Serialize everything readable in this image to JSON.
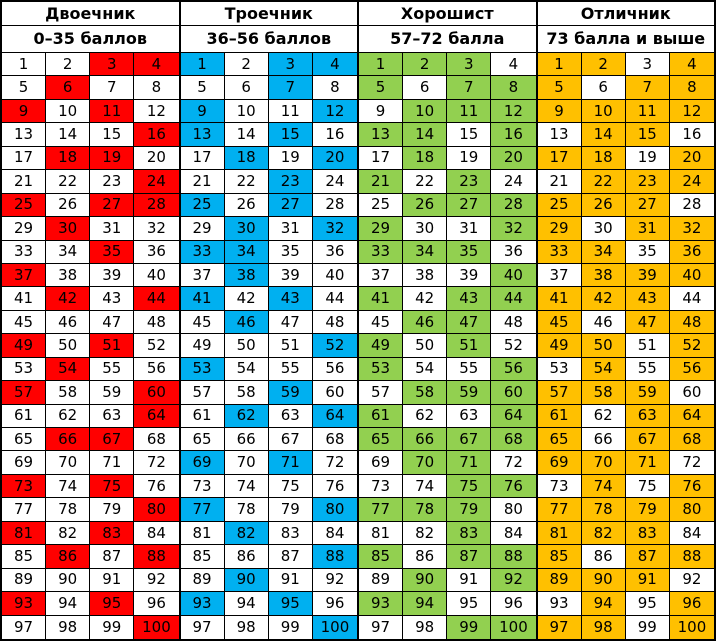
{
  "table": {
    "numbers_start": 1,
    "numbers_end": 100,
    "columns_per_group": 4,
    "rows_per_group": 25,
    "grid_color": "#000000",
    "text_color": "#000000",
    "background_color": "#ffffff",
    "groups": [
      {
        "title": "Двоечник",
        "range": "0–35 баллов",
        "highlight_color": "#ff0000",
        "highlighted": [
          3,
          4,
          6,
          9,
          11,
          16,
          18,
          19,
          24,
          25,
          27,
          28,
          30,
          35,
          37,
          42,
          44,
          49,
          51,
          54,
          57,
          60,
          64,
          66,
          67,
          73,
          75,
          80,
          81,
          83,
          86,
          88,
          93,
          95,
          100
        ]
      },
      {
        "title": "Троечник",
        "range": "36–56 баллов",
        "highlight_color": "#00b0f0",
        "highlighted": [
          1,
          3,
          4,
          7,
          9,
          12,
          13,
          15,
          18,
          20,
          23,
          25,
          27,
          30,
          32,
          33,
          34,
          38,
          41,
          43,
          46,
          52,
          53,
          59,
          62,
          64,
          69,
          71,
          77,
          80,
          82,
          88,
          90,
          93,
          95,
          100
        ]
      },
      {
        "title": "Хорошист",
        "range": "57–72 балла",
        "highlight_color": "#92d050",
        "highlighted": [
          1,
          2,
          3,
          5,
          7,
          8,
          10,
          11,
          12,
          13,
          14,
          16,
          18,
          20,
          21,
          23,
          26,
          27,
          28,
          29,
          32,
          33,
          34,
          35,
          40,
          41,
          43,
          44,
          46,
          47,
          49,
          51,
          53,
          56,
          58,
          59,
          60,
          61,
          64,
          65,
          66,
          67,
          68,
          70,
          71,
          75,
          76,
          77,
          78,
          79,
          83,
          85,
          87,
          88,
          90,
          92,
          93,
          94,
          99,
          100
        ]
      },
      {
        "title": "Отличник",
        "range": "73 балла и выше",
        "highlight_color": "#ffc000",
        "highlighted": [
          1,
          2,
          4,
          5,
          7,
          8,
          9,
          10,
          11,
          12,
          14,
          15,
          17,
          18,
          20,
          22,
          23,
          24,
          25,
          26,
          27,
          29,
          31,
          32,
          33,
          34,
          36,
          38,
          39,
          40,
          41,
          42,
          43,
          45,
          47,
          48,
          49,
          50,
          52,
          54,
          56,
          57,
          58,
          59,
          61,
          63,
          64,
          65,
          67,
          68,
          69,
          70,
          71,
          74,
          76,
          77,
          78,
          79,
          80,
          81,
          82,
          83,
          85,
          87,
          88,
          89,
          90,
          91,
          94,
          96,
          97,
          98,
          100
        ]
      }
    ]
  }
}
